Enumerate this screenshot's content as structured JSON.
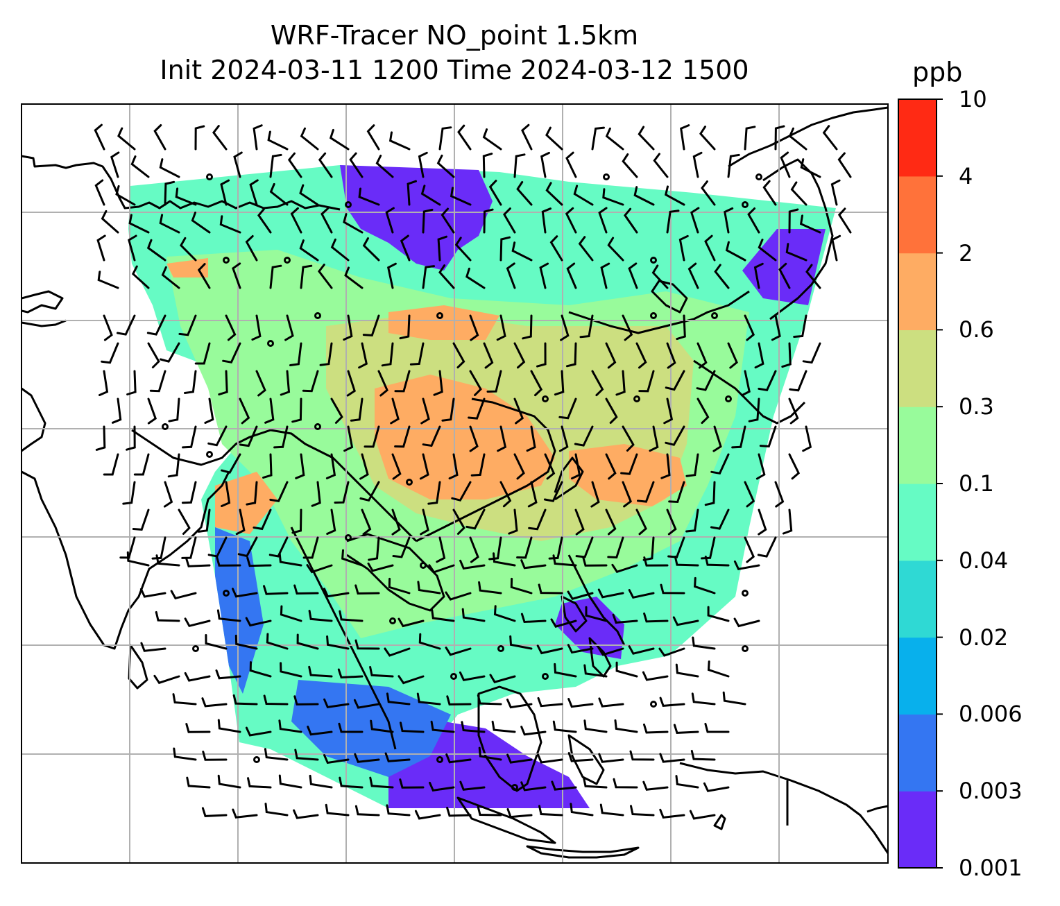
{
  "title": {
    "line1": "WRF-Tracer NO_point 1.5km",
    "line2": "Init 2024-03-11 1200 Time 2024-03-12 1500"
  },
  "colorbar": {
    "unit": "ppb",
    "levels": [
      "0.001",
      "0.003",
      "0.006",
      "0.02",
      "0.04",
      "0.1",
      "0.3",
      "0.6",
      "2",
      "4",
      "10"
    ],
    "colors": [
      "#6a2cf8",
      "#3476f2",
      "#08b0ec",
      "#2fd9d4",
      "#66fbc4",
      "#98fb9b",
      "#ccdf80",
      "#feac63",
      "#ff723a",
      "#ff2a14"
    ]
  },
  "map": {
    "gridlines": "on",
    "wind_barbs": "on",
    "coastlines": "on"
  }
}
